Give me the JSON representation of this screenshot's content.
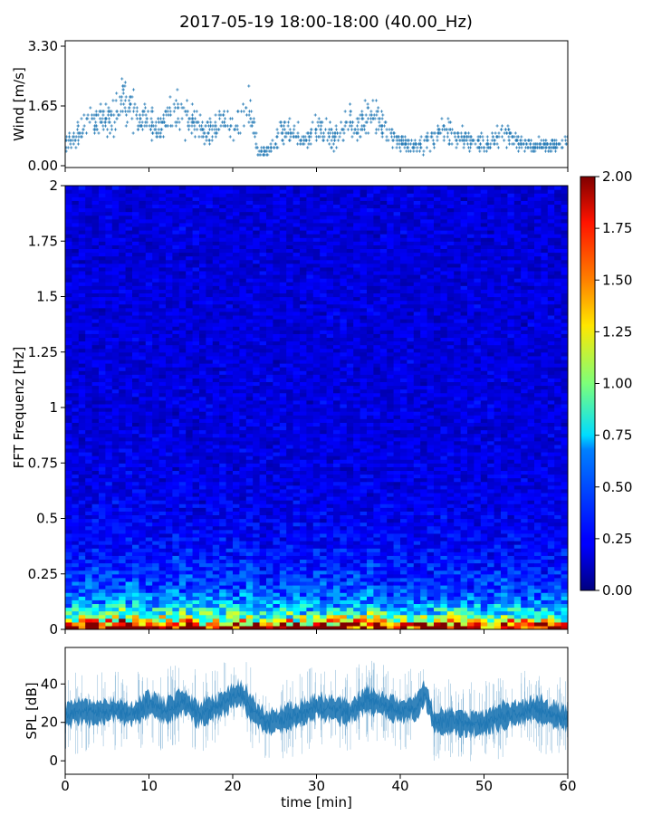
{
  "title": "2017-05-19 18:00-18:00 (40.00_Hz)",
  "chart_data": [
    {
      "type": "scatter",
      "ylabel": "Wind [m/s]",
      "ylim": [
        0,
        3.3
      ],
      "xlim": [
        0,
        60
      ],
      "yticks": [
        "0.00",
        "1.65",
        "3.30"
      ],
      "x_ticks_visible": false,
      "color": "#1f77b4",
      "marker": "+",
      "x": [
        0,
        2,
        3,
        5,
        6,
        7,
        8,
        9,
        10,
        11,
        12,
        13,
        14,
        15,
        16,
        17,
        18,
        19,
        20,
        21,
        22,
        23,
        24,
        25,
        26,
        27,
        28,
        29,
        30,
        31,
        32,
        33,
        34,
        35,
        36,
        37,
        38,
        39,
        40,
        41,
        42,
        43,
        44,
        45,
        46,
        47,
        48,
        49,
        50,
        51,
        52,
        53,
        54,
        55,
        56,
        57,
        58,
        59,
        60
      ],
      "y": [
        0.6,
        1.0,
        1.3,
        1.2,
        1.5,
        1.8,
        1.6,
        1.2,
        1.3,
        1.0,
        1.2,
        1.5,
        1.4,
        1.2,
        1.0,
        0.9,
        1.1,
        1.3,
        1.0,
        1.2,
        1.6,
        0.4,
        0.4,
        0.6,
        1.0,
        0.9,
        0.8,
        0.8,
        1.0,
        0.9,
        0.8,
        1.0,
        1.2,
        1.0,
        1.3,
        1.4,
        1.0,
        0.8,
        0.7,
        0.6,
        0.5,
        0.6,
        0.8,
        1.0,
        0.9,
        0.8,
        0.7,
        0.6,
        0.6,
        0.7,
        0.9,
        0.8,
        0.7,
        0.6,
        0.5,
        0.6,
        0.5,
        0.6,
        0.7
      ]
    },
    {
      "type": "heatmap",
      "ylabel": "FFT Frequenz [Hz]",
      "ylim": [
        0,
        2
      ],
      "xlim": [
        0,
        60
      ],
      "yticks": [
        "0",
        "0.25",
        "0.5",
        "0.75",
        "1",
        "1.25",
        "1.5",
        "1.75",
        "2"
      ],
      "colormap": "jet",
      "colorbar": {
        "range": [
          0,
          2
        ],
        "ticks": [
          "0.00",
          "0.25",
          "0.50",
          "0.75",
          "1.00",
          "1.25",
          "1.50",
          "1.75",
          "2.00"
        ]
      }
    },
    {
      "type": "line",
      "ylabel": "SPL [dB]",
      "xlabel": "time [min]",
      "xlim": [
        0,
        60
      ],
      "ylim": [
        -7,
        59
      ],
      "xticks": [
        "0",
        "10",
        "20",
        "30",
        "40",
        "50",
        "60"
      ],
      "yticks": [
        "0",
        "20",
        "40"
      ],
      "color": "#1f77b4",
      "x": [
        0,
        2,
        4,
        6,
        8,
        10,
        12,
        14,
        16,
        18,
        20,
        21,
        22,
        24,
        26,
        28,
        30,
        32,
        34,
        36,
        38,
        40,
        42,
        43,
        44,
        46,
        48,
        50,
        52,
        54,
        56,
        58,
        60
      ],
      "y": [
        24,
        26,
        25,
        27,
        24,
        30,
        26,
        31,
        24,
        28,
        33,
        35,
        28,
        20,
        22,
        24,
        28,
        27,
        25,
        32,
        29,
        26,
        28,
        36,
        20,
        21,
        19,
        20,
        23,
        25,
        27,
        24,
        22
      ]
    }
  ]
}
